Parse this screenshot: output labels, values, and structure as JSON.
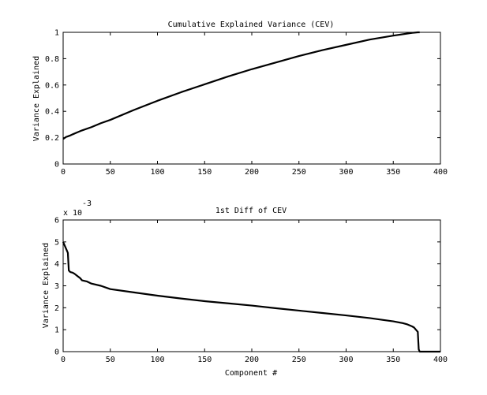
{
  "chart_data": [
    {
      "type": "line",
      "title": "Cumulative Explained Variance (CEV)",
      "xlabel": "",
      "ylabel": "Variance Explained",
      "xlim": [
        0,
        400
      ],
      "ylim": [
        0,
        1
      ],
      "xticks": [
        "0",
        "50",
        "100",
        "150",
        "200",
        "250",
        "300",
        "350",
        "400"
      ],
      "yticks": [
        "0",
        "0.2",
        "0.4",
        "0.6",
        "0.8",
        "1"
      ],
      "series": [
        {
          "x": [
            0,
            1,
            2,
            3,
            5,
            7,
            10,
            15,
            20,
            30,
            40,
            50,
            75,
            100,
            125,
            150,
            175,
            200,
            225,
            250,
            275,
            300,
            325,
            350,
            370,
            376,
            378
          ],
          "y": [
            0.19,
            0.195,
            0.2,
            0.205,
            0.21,
            0.215,
            0.225,
            0.24,
            0.255,
            0.28,
            0.31,
            0.335,
            0.41,
            0.48,
            0.545,
            0.605,
            0.665,
            0.72,
            0.77,
            0.82,
            0.865,
            0.905,
            0.945,
            0.975,
            0.996,
            1.0,
            1.0
          ]
        }
      ],
      "grid": false
    },
    {
      "type": "line",
      "title": "1st Diff of CEV",
      "xlabel": "Component #",
      "ylabel": "Variance Explained",
      "y_multiplier_text": "x 10",
      "y_exponent_text": "-3",
      "xlim": [
        0,
        400
      ],
      "ylim": [
        0,
        6
      ],
      "xticks": [
        "0",
        "50",
        "100",
        "150",
        "200",
        "250",
        "300",
        "350",
        "400"
      ],
      "yticks": [
        "0",
        "1",
        "2",
        "3",
        "4",
        "5",
        "6"
      ],
      "series": [
        {
          "x": [
            0,
            1,
            2,
            3,
            4,
            5,
            6,
            7,
            8,
            10,
            12,
            15,
            18,
            20,
            25,
            30,
            40,
            50,
            75,
            100,
            125,
            150,
            175,
            200,
            225,
            250,
            275,
            300,
            325,
            340,
            350,
            360,
            365,
            370,
            372,
            374,
            375,
            376,
            377,
            378,
            390,
            400
          ],
          "y": [
            5.0,
            4.9,
            4.8,
            4.7,
            4.6,
            4.5,
            3.7,
            3.65,
            3.62,
            3.6,
            3.55,
            3.45,
            3.35,
            3.25,
            3.2,
            3.1,
            3.0,
            2.85,
            2.7,
            2.55,
            2.42,
            2.3,
            2.2,
            2.1,
            1.98,
            1.87,
            1.76,
            1.65,
            1.53,
            1.44,
            1.38,
            1.3,
            1.24,
            1.15,
            1.1,
            1.0,
            0.95,
            0.9,
            0.1,
            0.0,
            0.0,
            0.0
          ]
        }
      ],
      "grid": false
    }
  ]
}
